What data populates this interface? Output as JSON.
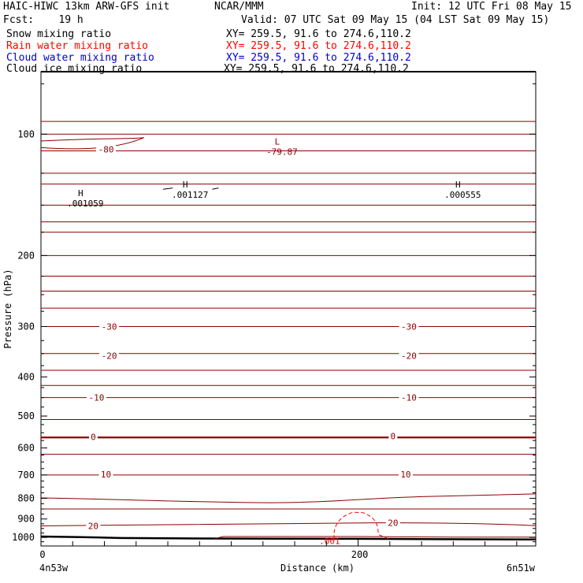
{
  "header": {
    "model": "HAIC-HIWC 13km ARW-GFS init",
    "org": "NCAR/MMM",
    "init": "Init: 12 UTC Fri 08 May 15",
    "fcst": "Fcst:    19 h",
    "valid": "Valid: 07 UTC Sat 09 May 15 (04 LST Sat 09 May 15)"
  },
  "fields": [
    {
      "label": "Snow mixing ratio",
      "xy": "XY= 259.5, 91.6 to 274.6,110.2",
      "color": "#000000"
    },
    {
      "label": "Rain water mixing ratio",
      "xy": "XY= 259.5, 91.6 to 274.6,110.2",
      "color": "#ff0000"
    },
    {
      "label": "Cloud water mixing ratio",
      "xy": "XY= 259.5, 91.6 to 274.6,110.2",
      "color": "#0000cc"
    },
    {
      "label": "Cloud ice mixing ratio",
      "xy": "XY= 259.5, 91.6 to 274.6,110.2",
      "color": "#000000"
    }
  ],
  "chart_data": {
    "type": "contour",
    "xlabel": "Distance (km)",
    "ylabel": "Pressure (hPa)",
    "xlim": [
      0,
      312
    ],
    "ylim": [
      1050,
      70
    ],
    "y_scale": "log",
    "x_ticks": [
      0,
      200
    ],
    "x_tick_labels": [
      "0",
      "200"
    ],
    "x_minor_step": 20,
    "y_ticks": [
      100,
      200,
      300,
      400,
      500,
      600,
      700,
      800,
      900,
      1000
    ],
    "endpoint_labels": {
      "left": "4n53w",
      "right": "6n51w"
    },
    "temperature_contour_color": "#8b0000",
    "temperature_contour_labels": [
      {
        "text": "-80",
        "x": 41,
        "p": 109
      },
      {
        "text": "-30",
        "x": 43,
        "p": 300
      },
      {
        "text": "-30",
        "x": 232,
        "p": 300
      },
      {
        "text": "-20",
        "x": 43,
        "p": 354
      },
      {
        "text": "-20",
        "x": 232,
        "p": 354
      },
      {
        "text": "-10",
        "x": 35,
        "p": 450
      },
      {
        "text": "-10",
        "x": 232,
        "p": 450
      },
      {
        "text": "0",
        "x": 33,
        "p": 563
      },
      {
        "text": "0",
        "x": 222,
        "p": 560
      },
      {
        "text": "10",
        "x": 41,
        "p": 698
      },
      {
        "text": "10",
        "x": 230,
        "p": 698
      },
      {
        "text": "20",
        "x": 33,
        "p": 936
      },
      {
        "text": "20",
        "x": 222,
        "p": 920
      }
    ],
    "extrema": [
      {
        "kind": "L",
        "value": "-79.87",
        "x": 148,
        "p": 108,
        "color": "#8b0000"
      },
      {
        "kind": "H",
        "value": ".001059",
        "x": 24,
        "p": 145,
        "color": "#000000"
      },
      {
        "kind": "H",
        "value": ".001127",
        "x": 90,
        "p": 138,
        "color": "#000000"
      },
      {
        "kind": "H",
        "value": ".000555",
        "x": 262,
        "p": 138,
        "color": "#000000"
      }
    ],
    "rain_contour_label": {
      "text": ".001",
      "x": 185,
      "p": 1010
    },
    "isotherm_pressures": [
      93,
      100,
      110,
      125,
      133,
      150,
      165,
      175,
      200,
      225,
      245,
      270,
      300,
      350,
      385,
      420,
      450,
      510,
      565,
      622,
      700,
      800,
      850,
      940
    ],
    "thick_isotherm_pressure": 565
  }
}
